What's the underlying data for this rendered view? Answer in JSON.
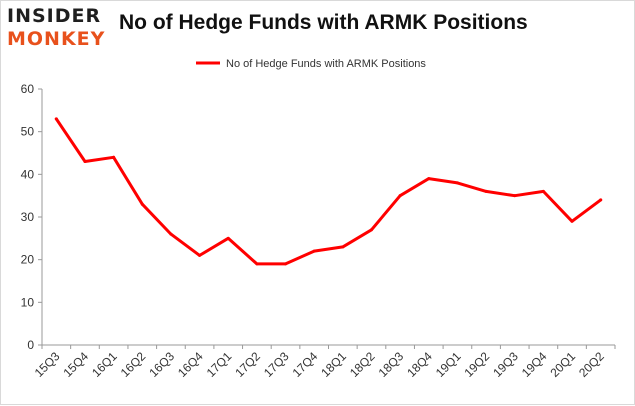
{
  "header": {
    "title": "No of Hedge Funds with ARMK Positions",
    "logo_top": "INSIDER",
    "logo_bottom": "MONKEY"
  },
  "colors": {
    "series": "#ff0000",
    "brand_dark": "#1f1f1f",
    "brand_accent": "#e8511c",
    "axis": "#999999"
  },
  "chart_data": {
    "type": "line",
    "title": "No of Hedge Funds with ARMK Positions",
    "xlabel": "",
    "ylabel": "",
    "ylim": [
      0,
      60
    ],
    "yticks": [
      0,
      10,
      20,
      30,
      40,
      50,
      60
    ],
    "grid": false,
    "legend_position": "top-center",
    "categories": [
      "15Q3",
      "15Q4",
      "16Q1",
      "16Q2",
      "16Q3",
      "16Q4",
      "17Q1",
      "17Q2",
      "17Q3",
      "17Q4",
      "18Q1",
      "18Q2",
      "18Q3",
      "18Q4",
      "19Q1",
      "19Q2",
      "19Q3",
      "19Q4",
      "20Q1",
      "20Q2"
    ],
    "series": [
      {
        "name": "No of Hedge Funds with ARMK Positions",
        "values": [
          53,
          43,
          44,
          33,
          26,
          21,
          25,
          19,
          19,
          22,
          23,
          27,
          35,
          39,
          38,
          36,
          35,
          36,
          29,
          34
        ]
      }
    ]
  }
}
